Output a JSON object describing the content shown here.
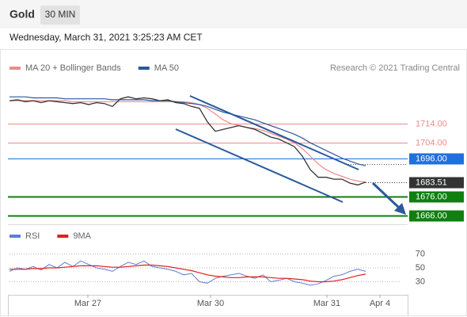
{
  "header": {
    "title": "Gold",
    "interval": "30 MIN",
    "timestamp": "Wednesday, March 31, 2021 3:25:23 AM CET"
  },
  "chart_data": [
    {
      "type": "line",
      "credit": "Research © 2021 Trading Central",
      "x": [
        0,
        1,
        2,
        3,
        4,
        5,
        6,
        7,
        8,
        9,
        10,
        11,
        12,
        13,
        14,
        15,
        16,
        17,
        18,
        19,
        20,
        21,
        22,
        23,
        24,
        25,
        26,
        27,
        28,
        29,
        30,
        31,
        32,
        33,
        34,
        35,
        36,
        37,
        38,
        39,
        40,
        41,
        42,
        43,
        44,
        45
      ],
      "xlim": [
        0,
        50.3
      ],
      "ylim": [
        1662,
        1737
      ],
      "values": [
        1726,
        1726.5,
        1725.5,
        1726,
        1725,
        1726,
        1725.5,
        1725,
        1724.5,
        1725,
        1724,
        1725,
        1724.5,
        1723,
        1727,
        1728,
        1727,
        1727.5,
        1727,
        1726,
        1726.5,
        1725,
        1724.5,
        1723,
        1722,
        1715,
        1710,
        1711,
        1712,
        1713,
        1712,
        1711,
        1709,
        1707,
        1706,
        1704,
        1702,
        1697,
        1690,
        1686,
        1686,
        1685,
        1685,
        1683,
        1682,
        1683.5
      ],
      "color": "#333333",
      "series": [
        {
          "name": "MA 20 + Bollinger Bands",
          "color": "#f08a8a",
          "values": [
            1726,
            1726,
            1726,
            1726,
            1726,
            1726,
            1726,
            1726,
            1725.5,
            1725.5,
            1725.5,
            1725.5,
            1725.5,
            1725.5,
            1725.5,
            1725.5,
            1725.5,
            1725.5,
            1725.5,
            1725.5,
            1725.5,
            1725.5,
            1725.5,
            1725,
            1724,
            1722,
            1719,
            1716,
            1714,
            1713,
            1712,
            1711.5,
            1710.5,
            1709,
            1707.5,
            1706,
            1704,
            1701,
            1697,
            1693,
            1690,
            1688,
            1686.5,
            1685,
            1684,
            1683.5
          ]
        },
        {
          "name": "MA 50",
          "color": "#2b5a9b",
          "values": [
            1728,
            1728,
            1728,
            1727.5,
            1727.5,
            1727.5,
            1727.5,
            1727,
            1727,
            1727,
            1727,
            1727,
            1727,
            1726.5,
            1726.5,
            1726.5,
            1726.5,
            1726.5,
            1726,
            1726,
            1726,
            1725.5,
            1725,
            1724.5,
            1724,
            1723,
            1721.5,
            1720,
            1719,
            1718,
            1717,
            1716,
            1714.5,
            1713,
            1711.5,
            1710,
            1708.5,
            1706.5,
            1704,
            1702,
            1700,
            1698,
            1696,
            1694.5,
            1693,
            1692
          ]
        }
      ],
      "levels": [
        {
          "value": 1714,
          "label": "1714.00",
          "color": "#f08a8a",
          "style": "text"
        },
        {
          "value": 1704,
          "label": "1704.00",
          "color": "#f08a8a",
          "style": "text"
        },
        {
          "value": 1696,
          "label": "1696.00",
          "color": "#1f6fe0",
          "style": "box"
        },
        {
          "value": 1683.51,
          "label": "1683.51",
          "color": "#333333",
          "style": "current"
        },
        {
          "value": 1676,
          "label": "1676.00",
          "color": "#0f7f0f",
          "style": "box"
        },
        {
          "value": 1666,
          "label": "1666.00",
          "color": "#0f7f0f",
          "style": "box"
        }
      ]
    },
    {
      "type": "line",
      "x": [
        0,
        1,
        2,
        3,
        4,
        5,
        6,
        7,
        8,
        9,
        10,
        11,
        12,
        13,
        14,
        15,
        16,
        17,
        18,
        19,
        20,
        21,
        22,
        23,
        24,
        25,
        26,
        27,
        28,
        29,
        30,
        31,
        32,
        33,
        34,
        35,
        36,
        37,
        38,
        39,
        40,
        41,
        42,
        43,
        44,
        45
      ],
      "xlim": [
        0,
        50.3
      ],
      "ylim": [
        12,
        93
      ],
      "yticks": [
        30,
        50,
        70
      ],
      "grid": true,
      "xticks": [
        {
          "value": 9.9,
          "label": "Mar 27"
        },
        {
          "value": 25.4,
          "label": "Mar 30"
        },
        {
          "value": 40.1,
          "label": "Mar 31"
        },
        {
          "value": 46.8,
          "label": "Apr 4"
        }
      ],
      "series": [
        {
          "name": "RSI",
          "color": "#5b7fd6",
          "values": [
            45,
            50,
            48,
            52,
            47,
            55,
            50,
            58,
            52,
            60,
            55,
            50,
            48,
            45,
            52,
            58,
            55,
            60,
            52,
            50,
            48,
            45,
            40,
            42,
            30,
            28,
            35,
            38,
            40,
            42,
            38,
            35,
            40,
            30,
            32,
            35,
            30,
            28,
            25,
            27,
            32,
            38,
            40,
            45,
            48,
            45
          ]
        },
        {
          "name": "9MA",
          "color": "#e02020",
          "values": [
            48,
            48,
            48,
            49,
            49,
            50,
            50,
            51,
            52,
            53,
            53,
            53,
            52,
            51,
            51,
            52,
            53,
            54,
            54,
            53,
            52,
            50,
            48,
            46,
            43,
            40,
            38,
            37,
            36,
            36,
            37,
            37,
            37,
            36,
            35,
            35,
            34,
            33,
            31,
            30,
            30,
            31,
            33,
            36,
            39,
            41
          ]
        }
      ]
    }
  ]
}
